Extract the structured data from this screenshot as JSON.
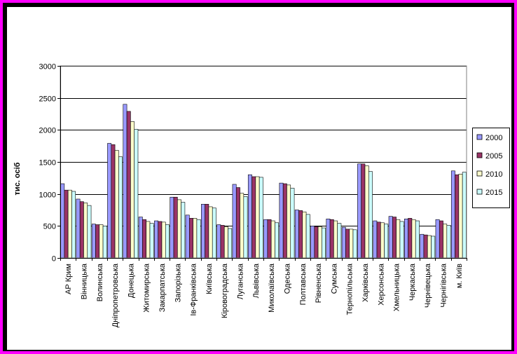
{
  "chart_data": {
    "type": "bar",
    "ylabel": "тис. осіб",
    "ylim": [
      0,
      3000
    ],
    "yticks": [
      0,
      500,
      1000,
      1500,
      2000,
      2500,
      3000
    ],
    "legend_position": "right",
    "grid": "horizontal",
    "categories": [
      "АР Крим",
      "Вінницька",
      "Волинська",
      "Дніпропетровська",
      "Донецька",
      "Житомирська",
      "Закарпатська",
      "Запорізька",
      "Ів-Франківська",
      "Київська",
      "Кіровоградська",
      "Луганська",
      "Львівська",
      "Миколаївська",
      "Одеська",
      "Полтавська",
      "Рівненська",
      "Сумська",
      "Тернопільська",
      "Харківська",
      "Херсонська",
      "Хмельницька",
      "Черкаська",
      "Чернівецька",
      "Чернігівська",
      "м. Київ"
    ],
    "series": [
      {
        "name": "2000",
        "color": "#9999ff",
        "values": [
          1160,
          920,
          530,
          1790,
          2400,
          640,
          580,
          950,
          670,
          840,
          520,
          1150,
          1300,
          600,
          1170,
          750,
          500,
          610,
          480,
          1470,
          580,
          650,
          610,
          370,
          600,
          1360
        ]
      },
      {
        "name": "2005",
        "color": "#993366",
        "values": [
          1060,
          880,
          520,
          1770,
          2290,
          600,
          570,
          950,
          620,
          840,
          510,
          1100,
          1270,
          600,
          1160,
          740,
          490,
          600,
          450,
          1470,
          560,
          640,
          620,
          360,
          580,
          1300
        ]
      },
      {
        "name": "2010",
        "color": "#ffffcc",
        "values": [
          1060,
          860,
          520,
          1680,
          2130,
          570,
          560,
          910,
          620,
          800,
          490,
          1010,
          1270,
          580,
          1140,
          720,
          490,
          580,
          450,
          1440,
          550,
          600,
          600,
          350,
          530,
          1310
        ]
      },
      {
        "name": "2015",
        "color": "#ccffff",
        "values": [
          1040,
          820,
          500,
          1580,
          2010,
          540,
          520,
          870,
          600,
          780,
          460,
          960,
          1260,
          550,
          1090,
          680,
          470,
          540,
          440,
          1350,
          530,
          570,
          580,
          340,
          510,
          1340
        ]
      }
    ]
  }
}
